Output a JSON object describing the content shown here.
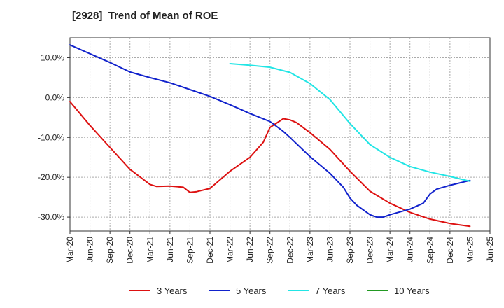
{
  "chart_data": {
    "type": "line",
    "title": "[2928]  Trend of Mean of ROE",
    "xlabel": "",
    "ylabel": "",
    "ylim": [
      -33.5,
      15
    ],
    "yticks": [
      10,
      0,
      -10,
      -20,
      -30
    ],
    "ytick_labels": [
      "10.0%",
      "0.0%",
      "-10.0%",
      "-20.0%",
      "-30.0%"
    ],
    "x_tick_labels": [
      "Mar-20",
      "Jun-20",
      "Sep-20",
      "Dec-20",
      "Mar-21",
      "Jun-21",
      "Sep-21",
      "Dec-21",
      "Mar-22",
      "Jun-22",
      "Sep-22",
      "Dec-22",
      "Mar-23",
      "Jun-23",
      "Sep-23",
      "Dec-23",
      "Mar-24",
      "Jun-24",
      "Sep-24",
      "Dec-24",
      "Mar-25",
      "Jun-25"
    ],
    "grid": true,
    "legend_position": "bottom",
    "series": [
      {
        "name": "3 Years",
        "color": "#dd1111",
        "points": [
          [
            "Mar-20",
            -1.0
          ],
          [
            "Jun-20",
            -7.0
          ],
          [
            "Sep-20",
            -12.5
          ],
          [
            "Dec-20",
            -18.0
          ],
          [
            "Mar-21",
            -21.8
          ],
          [
            "Apr-21",
            -22.3
          ],
          [
            "Jun-21",
            -22.2
          ],
          [
            "Aug-21",
            -22.5
          ],
          [
            "Sep-21",
            -23.8
          ],
          [
            "Oct-21",
            -23.6
          ],
          [
            "Dec-21",
            -22.8
          ],
          [
            "Mar-22",
            -18.5
          ],
          [
            "Jun-22",
            -15.0
          ],
          [
            "Aug-22",
            -11.2
          ],
          [
            "Sep-22",
            -7.5
          ],
          [
            "Nov-22",
            -5.3
          ],
          [
            "Dec-22",
            -5.6
          ],
          [
            "Jan-23",
            -6.3
          ],
          [
            "Mar-23",
            -8.8
          ],
          [
            "Jun-23",
            -13.0
          ],
          [
            "Sep-23",
            -18.5
          ],
          [
            "Dec-23",
            -23.5
          ],
          [
            "Mar-24",
            -26.5
          ],
          [
            "Jun-24",
            -28.8
          ],
          [
            "Sep-24",
            -30.5
          ],
          [
            "Dec-24",
            -31.6
          ],
          [
            "Mar-25",
            -32.3
          ]
        ]
      },
      {
        "name": "5 Years",
        "color": "#1122cc",
        "points": [
          [
            "Mar-20",
            13.2
          ],
          [
            "Jun-20",
            11.0
          ],
          [
            "Sep-20",
            8.8
          ],
          [
            "Dec-20",
            6.4
          ],
          [
            "Mar-21",
            5.0
          ],
          [
            "Jun-21",
            3.7
          ],
          [
            "Sep-21",
            2.0
          ],
          [
            "Dec-21",
            0.3
          ],
          [
            "Mar-22",
            -1.8
          ],
          [
            "Jun-22",
            -4.0
          ],
          [
            "Sep-22",
            -6.0
          ],
          [
            "Nov-22",
            -8.5
          ],
          [
            "Dec-22",
            -10.0
          ],
          [
            "Mar-23",
            -14.8
          ],
          [
            "Jun-23",
            -19.0
          ],
          [
            "Aug-23",
            -22.5
          ],
          [
            "Sep-23",
            -25.2
          ],
          [
            "Oct-23",
            -27.0
          ],
          [
            "Dec-23",
            -29.4
          ],
          [
            "Jan-24",
            -30.0
          ],
          [
            "Feb-24",
            -30.0
          ],
          [
            "Mar-24",
            -29.4
          ],
          [
            "Jun-24",
            -28.0
          ],
          [
            "Aug-24",
            -26.5
          ],
          [
            "Sep-24",
            -24.2
          ],
          [
            "Oct-24",
            -23.0
          ],
          [
            "Dec-24",
            -22.0
          ],
          [
            "Mar-25",
            -20.8
          ]
        ]
      },
      {
        "name": "7 Years",
        "color": "#22e5e5",
        "points": [
          [
            "Mar-22",
            8.5
          ],
          [
            "Jun-22",
            8.1
          ],
          [
            "Sep-22",
            7.6
          ],
          [
            "Dec-22",
            6.3
          ],
          [
            "Mar-23",
            3.5
          ],
          [
            "Jun-23",
            -0.5
          ],
          [
            "Sep-23",
            -6.5
          ],
          [
            "Dec-23",
            -11.8
          ],
          [
            "Mar-24",
            -15.0
          ],
          [
            "Jun-24",
            -17.3
          ],
          [
            "Sep-24",
            -18.7
          ],
          [
            "Dec-24",
            -19.8
          ],
          [
            "Mar-25",
            -21.0
          ]
        ]
      },
      {
        "name": "10 Years",
        "color": "#229922",
        "points": []
      }
    ]
  }
}
